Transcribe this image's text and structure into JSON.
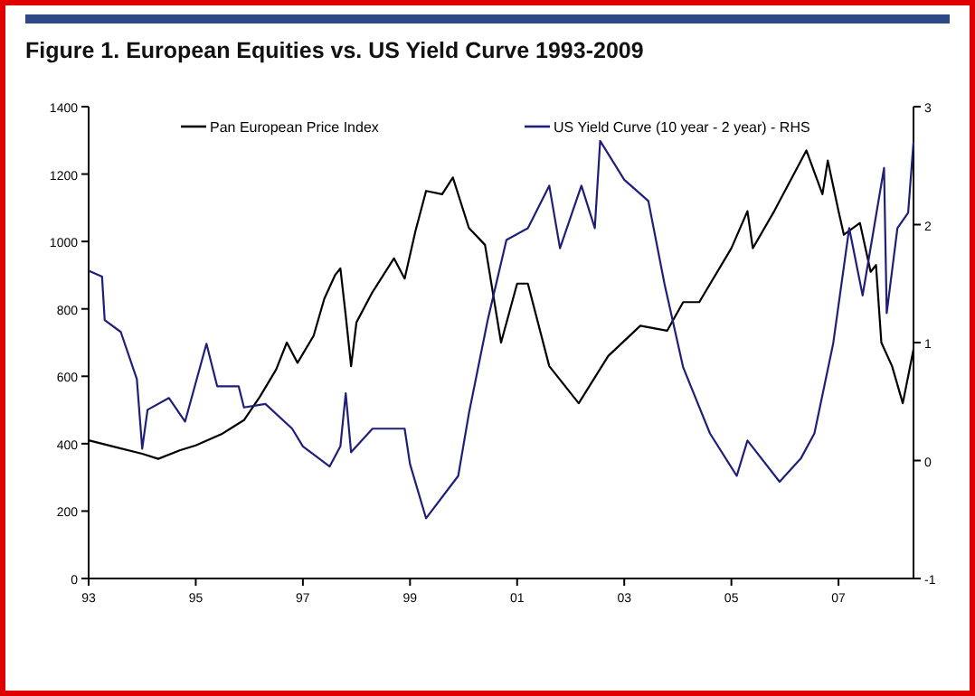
{
  "chart_data": {
    "type": "line",
    "title": "Figure 1. European Equities vs. US Yield Curve 1993-2009",
    "xlim": [
      1993,
      2008.4
    ],
    "xticks": [
      {
        "value": 1993,
        "label": "93"
      },
      {
        "value": 1995,
        "label": "95"
      },
      {
        "value": 1997,
        "label": "97"
      },
      {
        "value": 1999,
        "label": "99"
      },
      {
        "value": 2001,
        "label": "01"
      },
      {
        "value": 2003,
        "label": "03"
      },
      {
        "value": 2005,
        "label": "05"
      },
      {
        "value": 2007,
        "label": "07"
      }
    ],
    "ylim": [
      0,
      1400
    ],
    "yticks": [
      0,
      200,
      400,
      600,
      800,
      1000,
      1200,
      1400
    ],
    "y2lim": [
      -1,
      3
    ],
    "y2ticks": [
      -1,
      0,
      1,
      2,
      3
    ],
    "legend": "top",
    "grid": false,
    "series": [
      {
        "name": "Pan European Price Index",
        "color": "#000000",
        "x": [
          1993,
          1993.5,
          1994,
          1994.3,
          1994.7,
          1995,
          1995.5,
          1995.9,
          1996.2,
          1996.5,
          1996.7,
          1996.9,
          1997.2,
          1997.4,
          1997.6,
          1997.7,
          1997.8,
          1997.9,
          1998,
          1998.3,
          1998.7,
          1998.9,
          1999.1,
          1999.3,
          1999.6,
          1999.8,
          2000.1,
          2000.4,
          2000.7,
          2001,
          2001.2,
          2001.6,
          2002.15,
          2002.7,
          2003.3,
          2003.8,
          2004.1,
          2004.4,
          2005,
          2005.3,
          2005.4,
          2005.8,
          2006.4,
          2006.7,
          2006.8,
          2007,
          2007.1,
          2007.4,
          2007.6,
          2007.7,
          2007.8,
          2008,
          2008.2,
          2008.4
        ],
        "values": [
          410,
          390,
          370,
          355,
          380,
          395,
          430,
          470,
          540,
          620,
          700,
          640,
          720,
          830,
          900,
          920,
          780,
          630,
          760,
          850,
          950,
          890,
          1030,
          1150,
          1140,
          1190,
          1040,
          990,
          700,
          875,
          875,
          630,
          520,
          660,
          750,
          735,
          820,
          820,
          980,
          1090,
          980,
          1090,
          1270,
          1140,
          1240,
          1090,
          1020,
          1055,
          910,
          930,
          700,
          630,
          520,
          680
        ]
      },
      {
        "name": "US Yield Curve (10 year - 2 year) - RHS",
        "color": "#1f1f7a",
        "axis": "y2",
        "x": [
          1993,
          1993.25,
          1993.3,
          1993.6,
          1993.9,
          1994,
          1994.1,
          1994.5,
          1994.8,
          1995.2,
          1995.4,
          1995.8,
          1995.9,
          1996.3,
          1996.8,
          1997,
          1997.5,
          1997.7,
          1997.8,
          1997.9,
          1998.3,
          1998.9,
          1999,
          1999.3,
          1999.9,
          2000.1,
          2000.45,
          2000.8,
          2001.2,
          2001.6,
          2001.8,
          2002.2,
          2002.45,
          2002.55,
          2003,
          2003.45,
          2003.75,
          2004.1,
          2004.6,
          2005.1,
          2005.3,
          2005.9,
          2006.3,
          2006.55,
          2006.9,
          2007.2,
          2007.45,
          2007.85,
          2007.9,
          2008.1,
          2008.3,
          2008.4
        ],
        "values": [
          1.61,
          1.56,
          1.19,
          1.09,
          0.69,
          0.1,
          0.43,
          0.53,
          0.33,
          0.99,
          0.63,
          0.63,
          0.45,
          0.48,
          0.27,
          0.12,
          -0.05,
          0.12,
          0.57,
          0.07,
          0.27,
          0.27,
          -0.03,
          -0.49,
          -0.13,
          0.4,
          1.19,
          1.87,
          1.97,
          2.33,
          1.8,
          2.33,
          1.97,
          2.71,
          2.38,
          2.2,
          1.5,
          0.79,
          0.23,
          -0.13,
          0.17,
          -0.18,
          0.02,
          0.23,
          0.99,
          1.97,
          1.4,
          2.48,
          1.25,
          1.97,
          2.1,
          2.7
        ]
      }
    ]
  }
}
